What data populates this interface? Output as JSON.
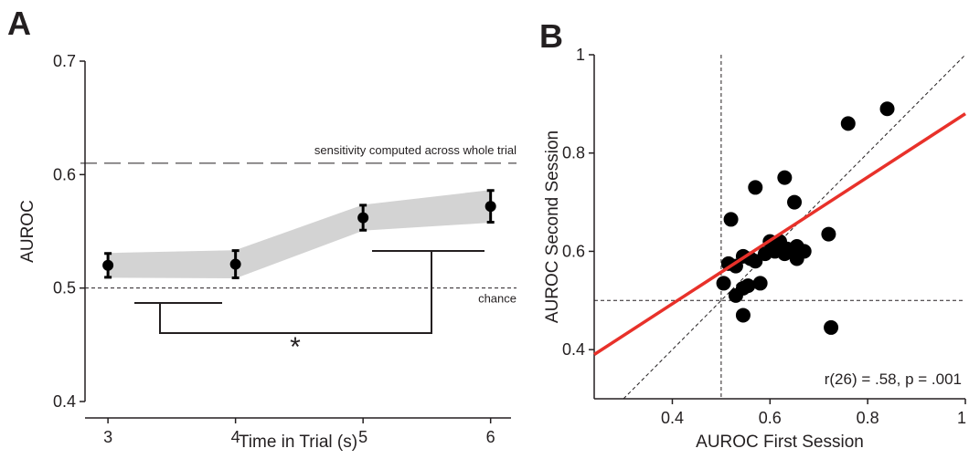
{
  "chart_data": [
    {
      "type": "errorbar-line",
      "title": "A",
      "x_label": "Time in Trial (s)",
      "y_label": "AUROC",
      "x": [
        3,
        4,
        5,
        6
      ],
      "values": [
        0.52,
        0.521,
        0.562,
        0.572
      ],
      "errors": [
        0.0105,
        0.012,
        0.011,
        0.014
      ],
      "color": "#000000",
      "band_color": "#d3d3d3",
      "xlim": [
        2.82,
        6.16
      ],
      "xticks": [
        3,
        4,
        5,
        6
      ],
      "ylim": [
        0.4,
        0.7
      ],
      "yticks": [
        0.4,
        0.5,
        0.6,
        0.7
      ],
      "reference_lines": [
        {
          "value": 0.61,
          "label": "sensitivity computed across whole trial"
        },
        {
          "value": 0.5,
          "label": "chance"
        }
      ],
      "annotation": "*"
    },
    {
      "type": "scatter",
      "title": "B",
      "x_label": "AUROC First Session",
      "y_label": "AUROC Second Session",
      "x": [
        0.84,
        0.76,
        0.57,
        0.63,
        0.52,
        0.65,
        0.72,
        0.6,
        0.62,
        0.635,
        0.655,
        0.67,
        0.59,
        0.61,
        0.63,
        0.655,
        0.56,
        0.515,
        0.53,
        0.545,
        0.57,
        0.58,
        0.555,
        0.545,
        0.53,
        0.505,
        0.545,
        0.725
      ],
      "y": [
        0.89,
        0.86,
        0.73,
        0.75,
        0.665,
        0.7,
        0.635,
        0.62,
        0.62,
        0.605,
        0.61,
        0.6,
        0.595,
        0.6,
        0.595,
        0.585,
        0.585,
        0.575,
        0.57,
        0.59,
        0.58,
        0.535,
        0.53,
        0.525,
        0.51,
        0.535,
        0.47,
        0.445
      ],
      "color": "#000000",
      "fit": {
        "x": [
          0.24,
          1
        ],
        "y": [
          0.39,
          0.88
        ],
        "color": "#e8312a"
      },
      "reference_x": 0.5,
      "reference_y": 0.5,
      "identity_line": true,
      "xlim": [
        0.24,
        1
      ],
      "xticks": [
        0.4,
        0.6,
        0.8,
        1
      ],
      "ylim": [
        0.3,
        1
      ],
      "yticks": [
        0.4,
        0.6,
        0.8,
        1
      ],
      "annotation": "r(26) = .58, p = .001"
    }
  ]
}
